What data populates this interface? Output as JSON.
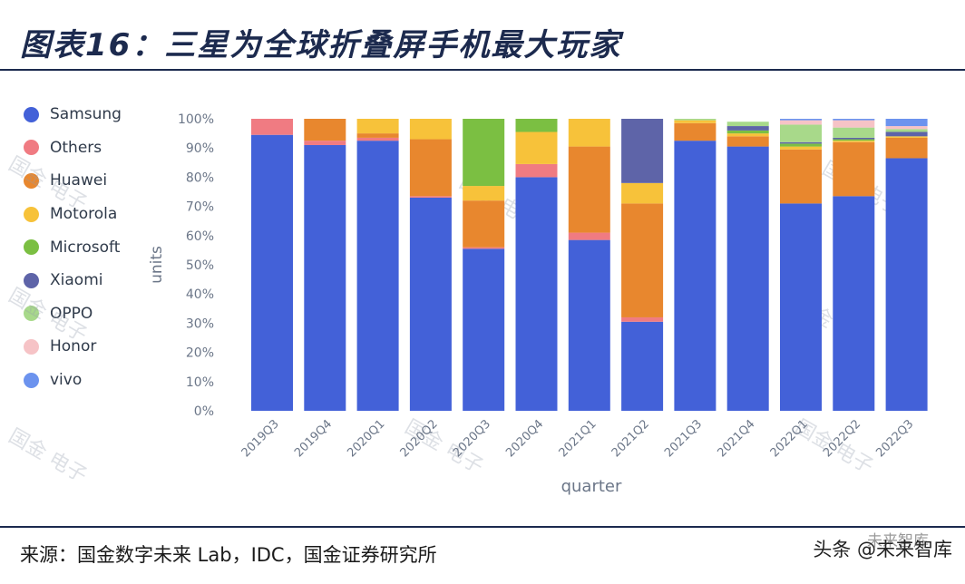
{
  "header": {
    "title": "图表16：三星为全球折叠屏手机最大玩家"
  },
  "footer": {
    "source": "来源：国金数字未来 Lab，IDC，国金证券研究所",
    "credit": "头条 @未来智库",
    "credit_top": "未来智库"
  },
  "watermark_text": "国金 电子",
  "chart_data": {
    "type": "bar",
    "stacked": true,
    "xlabel": "quarter",
    "ylabel": "units",
    "ylim": [
      0,
      100
    ],
    "y_ticks": [
      "0%",
      "10%",
      "20%",
      "30%",
      "40%",
      "50%",
      "60%",
      "70%",
      "80%",
      "90%",
      "100%"
    ],
    "legend_position": "left",
    "categories": [
      "2019Q3",
      "2019Q4",
      "2020Q1",
      "2020Q2",
      "2020Q3",
      "2020Q4",
      "2021Q1",
      "2021Q2",
      "2021Q3",
      "2021Q4",
      "2022Q1",
      "2022Q2",
      "2022Q3"
    ],
    "series": [
      {
        "name": "Samsung",
        "color": "#4361d8",
        "values": [
          94.5,
          91,
          92.5,
          73,
          55.5,
          80,
          58.5,
          30.5,
          92.5,
          90.5,
          71,
          73.5,
          86.5
        ]
      },
      {
        "name": "Others",
        "color": "#f07b82",
        "values": [
          5.5,
          1.5,
          1,
          0.5,
          0.5,
          4.5,
          2.5,
          1.5,
          0,
          0,
          0,
          0,
          0
        ]
      },
      {
        "name": "Huawei",
        "color": "#e8872e",
        "values": [
          0,
          7.5,
          1.5,
          19.5,
          16,
          0,
          29.5,
          39,
          6,
          3.5,
          18.5,
          18.5,
          7
        ]
      },
      {
        "name": "Motorola",
        "color": "#f7c23a",
        "values": [
          0,
          0,
          5,
          7,
          5,
          11,
          9.5,
          7,
          1,
          1,
          1,
          0.5,
          0.5
        ]
      },
      {
        "name": "Microsoft",
        "color": "#7bbf42",
        "values": [
          0,
          0,
          0,
          0,
          23,
          4.5,
          0,
          0,
          0,
          1,
          1,
          0.5,
          0
        ]
      },
      {
        "name": "Xiaomi",
        "color": "#5e64a8",
        "values": [
          0,
          0,
          0,
          0,
          0,
          0,
          0,
          22,
          0,
          1.5,
          0.5,
          0.5,
          1.5
        ]
      },
      {
        "name": "OPPO",
        "color": "#a8d98a",
        "values": [
          0,
          0,
          0,
          0,
          0,
          0,
          0,
          0,
          0.5,
          1.5,
          6,
          3.5,
          1
        ]
      },
      {
        "name": "Honor",
        "color": "#f6c3c6",
        "values": [
          0,
          0,
          0,
          0,
          0,
          0,
          0,
          0,
          0,
          0,
          1.5,
          2.5,
          1
        ]
      },
      {
        "name": "vivo",
        "color": "#6c93ee",
        "values": [
          0,
          0,
          0,
          0,
          0,
          0,
          0,
          0,
          0,
          0,
          0.5,
          0.5,
          2.5
        ]
      }
    ]
  }
}
